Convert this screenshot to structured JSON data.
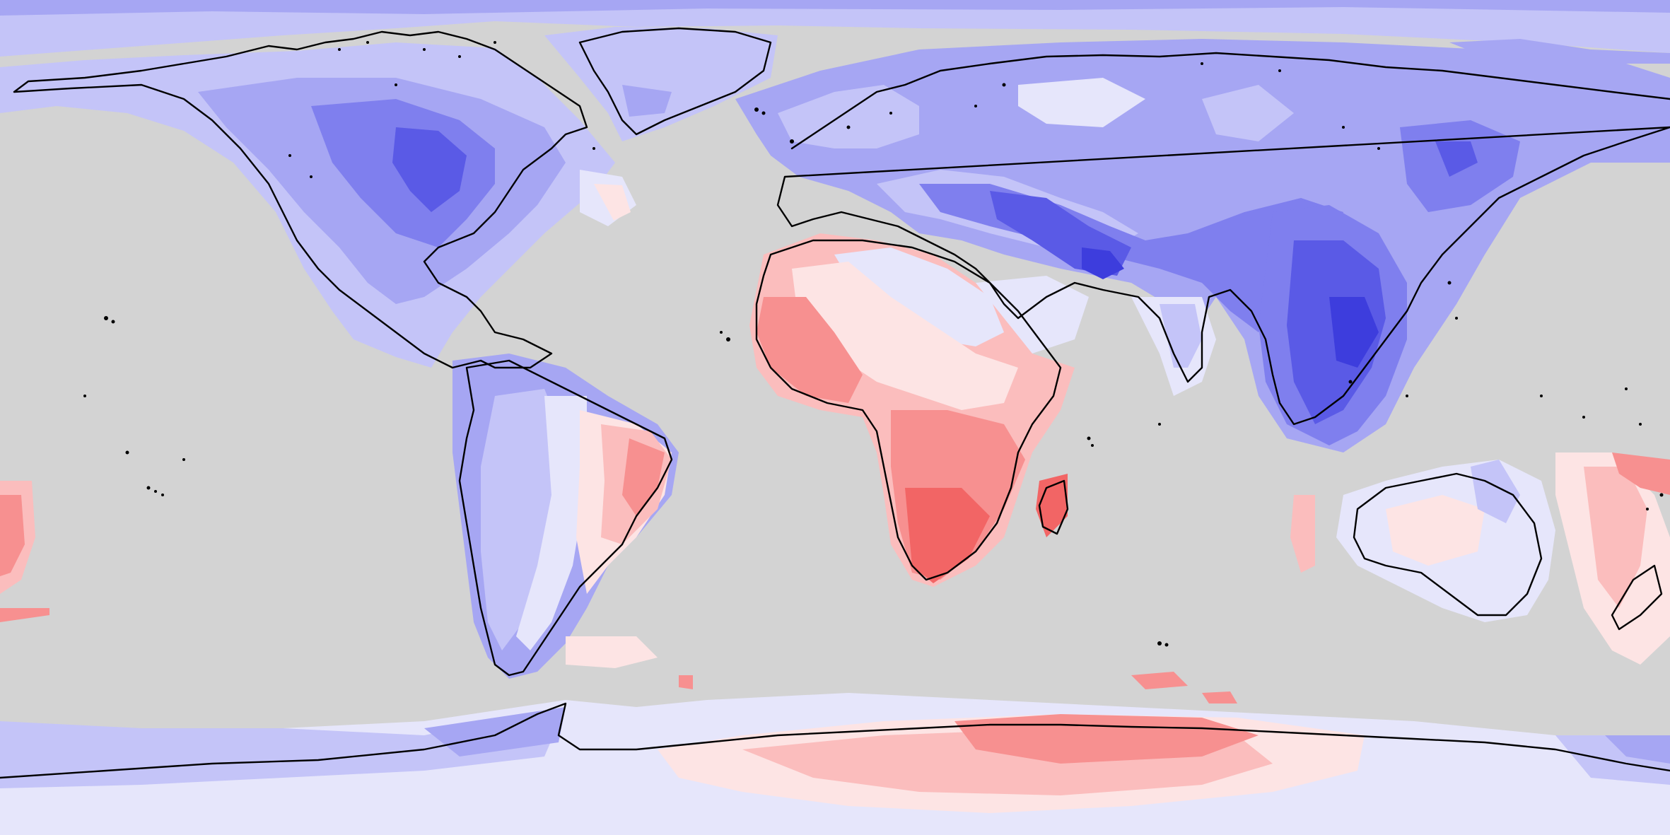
{
  "map": {
    "projection": "equirectangular",
    "ocean_color": "#d3d3d3",
    "coastline_color": "#000000",
    "colors": {
      "red_strong": "#f26565",
      "red_mid": "#f79090",
      "red_light": "#fbbdbd",
      "red_pale": "#fde4e4",
      "blue_pale": "#e6e6fb",
      "blue_light": "#c4c4f8",
      "blue_mid": "#a6a6f3",
      "blue_strong": "#7f7fee",
      "blue_deep": "#5a5ae6",
      "blue_darkest": "#3d3ddd"
    }
  }
}
